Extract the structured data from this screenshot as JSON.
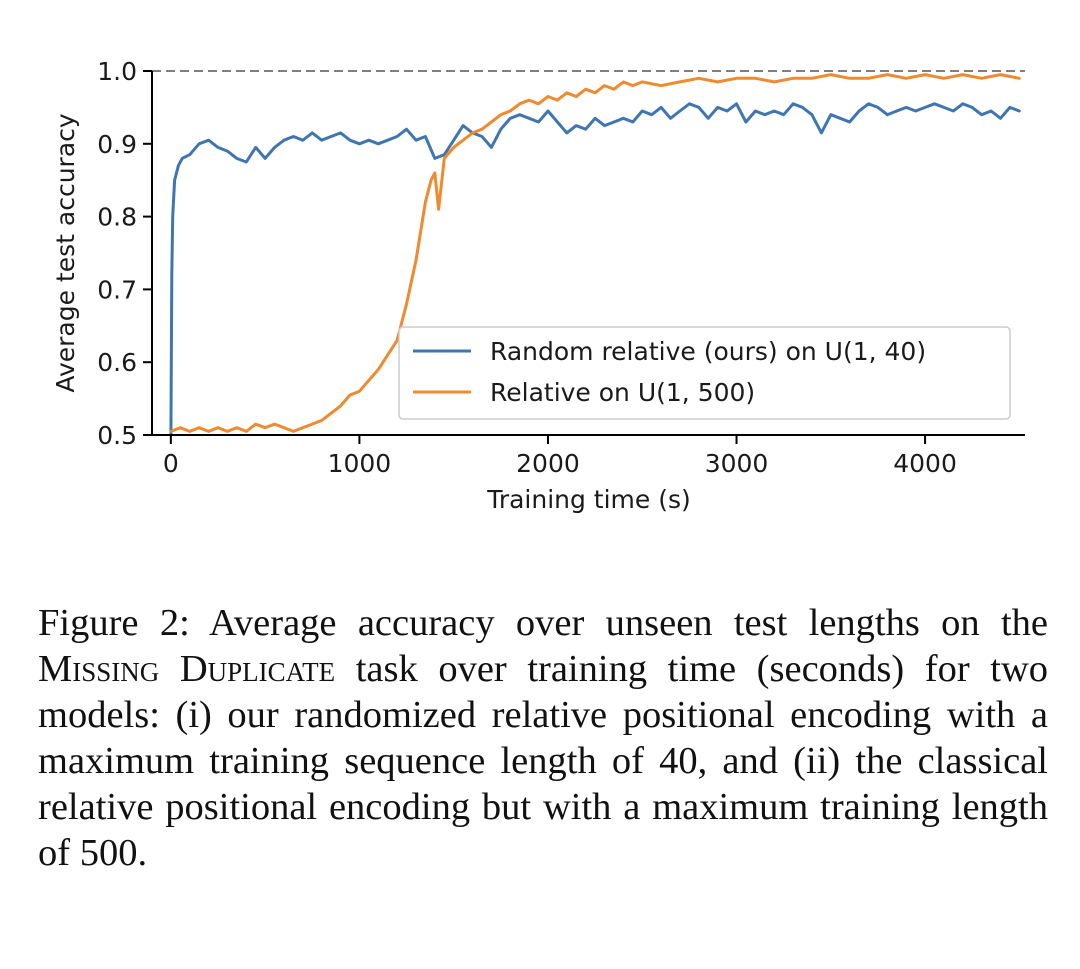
{
  "chart_data": {
    "type": "line",
    "title": "",
    "xlabel": "Training time (s)",
    "ylabel": "Average test accuracy",
    "xlim": [
      -100,
      4530
    ],
    "ylim": [
      0.5,
      1.0
    ],
    "xticks": [
      0,
      1000,
      2000,
      3000,
      4000
    ],
    "yticks": [
      0.5,
      0.6,
      0.7,
      0.8,
      0.9,
      1.0
    ],
    "xtick_labels": [
      "0",
      "1000",
      "2000",
      "3000",
      "4000"
    ],
    "ytick_labels": [
      "0.5",
      "0.6",
      "0.7",
      "0.8",
      "0.9",
      "1.0"
    ],
    "reference_line": {
      "y": 1.0,
      "style": "dashed",
      "color": "#7f7f7f"
    },
    "legend": {
      "position": "center-right"
    },
    "series": [
      {
        "name": "Random relative (ours) on U(1, 40)",
        "color": "#3f75b0",
        "x": [
          0,
          5,
          10,
          20,
          40,
          60,
          100,
          150,
          200,
          250,
          300,
          350,
          400,
          450,
          500,
          550,
          600,
          650,
          700,
          750,
          800,
          850,
          900,
          950,
          1000,
          1050,
          1100,
          1150,
          1200,
          1250,
          1300,
          1350,
          1400,
          1450,
          1500,
          1550,
          1600,
          1650,
          1700,
          1750,
          1800,
          1850,
          1900,
          1950,
          2000,
          2050,
          2100,
          2150,
          2200,
          2250,
          2300,
          2350,
          2400,
          2450,
          2500,
          2550,
          2600,
          2650,
          2700,
          2750,
          2800,
          2850,
          2900,
          2950,
          3000,
          3050,
          3100,
          3150,
          3200,
          3250,
          3300,
          3350,
          3400,
          3450,
          3500,
          3550,
          3600,
          3650,
          3700,
          3750,
          3800,
          3850,
          3900,
          3950,
          4000,
          4050,
          4100,
          4150,
          4200,
          4250,
          4300,
          4350,
          4400,
          4450,
          4500
        ],
        "values": [
          0.5,
          0.72,
          0.8,
          0.85,
          0.87,
          0.88,
          0.885,
          0.9,
          0.905,
          0.895,
          0.89,
          0.88,
          0.875,
          0.895,
          0.88,
          0.895,
          0.905,
          0.91,
          0.905,
          0.915,
          0.905,
          0.91,
          0.915,
          0.905,
          0.9,
          0.905,
          0.9,
          0.905,
          0.91,
          0.92,
          0.905,
          0.91,
          0.88,
          0.885,
          0.905,
          0.925,
          0.915,
          0.91,
          0.895,
          0.92,
          0.935,
          0.94,
          0.935,
          0.93,
          0.945,
          0.93,
          0.915,
          0.925,
          0.92,
          0.935,
          0.925,
          0.93,
          0.935,
          0.93,
          0.945,
          0.94,
          0.95,
          0.935,
          0.945,
          0.955,
          0.95,
          0.935,
          0.95,
          0.945,
          0.955,
          0.93,
          0.945,
          0.94,
          0.945,
          0.94,
          0.955,
          0.95,
          0.94,
          0.915,
          0.94,
          0.935,
          0.93,
          0.945,
          0.955,
          0.95,
          0.94,
          0.945,
          0.95,
          0.945,
          0.95,
          0.955,
          0.95,
          0.945,
          0.955,
          0.95,
          0.94,
          0.945,
          0.935,
          0.95,
          0.945
        ]
      },
      {
        "name": "Relative on U(1, 500)",
        "color": "#ef8a2f",
        "x": [
          0,
          50,
          100,
          150,
          200,
          250,
          300,
          350,
          400,
          450,
          500,
          550,
          600,
          650,
          700,
          750,
          800,
          850,
          900,
          950,
          1000,
          1050,
          1100,
          1150,
          1200,
          1250,
          1300,
          1350,
          1380,
          1400,
          1420,
          1450,
          1500,
          1550,
          1600,
          1650,
          1700,
          1750,
          1800,
          1850,
          1900,
          1950,
          2000,
          2050,
          2100,
          2150,
          2200,
          2250,
          2300,
          2350,
          2400,
          2450,
          2500,
          2600,
          2700,
          2800,
          2900,
          3000,
          3100,
          3200,
          3300,
          3400,
          3500,
          3600,
          3700,
          3800,
          3900,
          4000,
          4100,
          4200,
          4300,
          4400,
          4500
        ],
        "values": [
          0.505,
          0.51,
          0.505,
          0.51,
          0.505,
          0.51,
          0.505,
          0.51,
          0.505,
          0.515,
          0.51,
          0.515,
          0.51,
          0.505,
          0.51,
          0.515,
          0.52,
          0.53,
          0.54,
          0.555,
          0.56,
          0.575,
          0.59,
          0.61,
          0.63,
          0.68,
          0.74,
          0.82,
          0.85,
          0.86,
          0.81,
          0.88,
          0.895,
          0.905,
          0.915,
          0.92,
          0.93,
          0.94,
          0.945,
          0.955,
          0.96,
          0.955,
          0.965,
          0.96,
          0.97,
          0.965,
          0.975,
          0.97,
          0.98,
          0.975,
          0.985,
          0.98,
          0.985,
          0.98,
          0.985,
          0.99,
          0.985,
          0.99,
          0.99,
          0.985,
          0.99,
          0.99,
          0.995,
          0.99,
          0.99,
          0.995,
          0.99,
          0.995,
          0.99,
          0.995,
          0.99,
          0.995,
          0.99
        ]
      }
    ]
  },
  "caption": {
    "label": "Figure 2:",
    "text_before": "Average accuracy over unseen test lengths on the",
    "task_name": "Missing Duplicate",
    "text_after": "task over training time (seconds) for two models: (i) our randomized relative positional encoding with a maximum training sequence length of 40, and (ii) the classical relative positional encoding but with a maximum training length of 500."
  }
}
